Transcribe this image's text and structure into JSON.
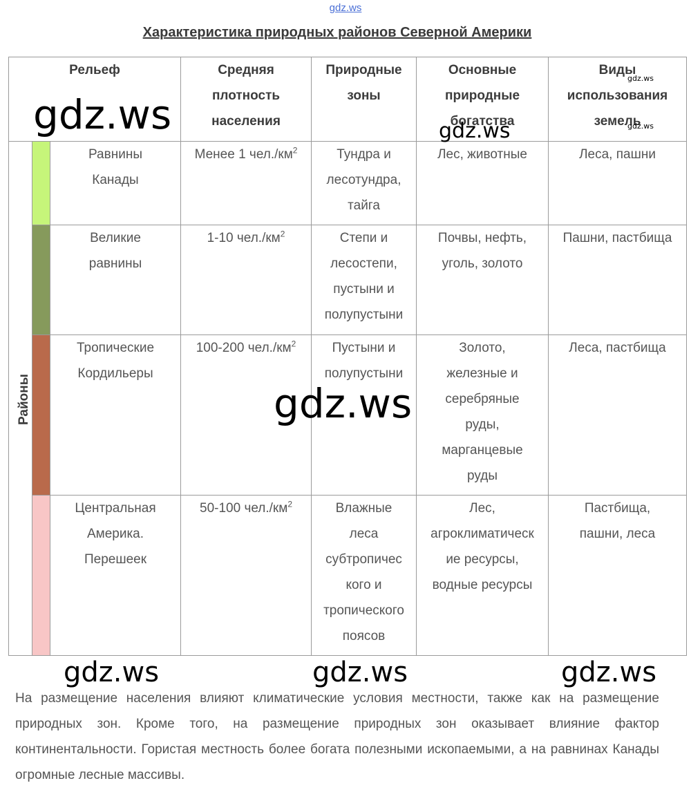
{
  "watermark_top": "gdz.ws",
  "title": "Характеристика природных районов Северной Америки",
  "headers": {
    "relief": "Рельеф",
    "density": [
      "Средняя",
      "плотность",
      "населения"
    ],
    "zones": [
      "Природные",
      "зоны"
    ],
    "resources": [
      "Основные",
      "природные",
      "богатства"
    ],
    "land_use": [
      "Виды",
      "использования",
      "земель"
    ]
  },
  "side_label": "Районы",
  "rows": [
    {
      "stripe_color": "#c6f57a",
      "relief": [
        "Равнины",
        "Канады"
      ],
      "density": "Менее 1 чел./км",
      "density_sup": "2",
      "zones": [
        "Тундра и",
        "лесотундра,",
        "тайга"
      ],
      "resources": [
        "Лес, животные"
      ],
      "land_use": [
        "Леса, пашни"
      ]
    },
    {
      "stripe_color": "#869a5c",
      "relief": [
        "Великие",
        "равнины"
      ],
      "density": "1-10 чел./км",
      "density_sup": "2",
      "zones": [
        "Степи и",
        "лесостепи,",
        "пустыни и",
        "полупустыни"
      ],
      "resources": [
        "Почвы, нефть,",
        "уголь, золото"
      ],
      "land_use": [
        "Пашни, пастбища"
      ]
    },
    {
      "stripe_color": "#b96a4b",
      "relief": [
        "Тропические",
        "Кордильеры"
      ],
      "density": "100-200 чел./км",
      "density_sup": "2",
      "zones": [
        "Пустыни и",
        "полупустыни"
      ],
      "resources": [
        "Золото,",
        "железные и",
        "серебряные",
        "руды,",
        "марганцевые",
        "руды"
      ],
      "land_use": [
        "Леса, пастбища"
      ]
    },
    {
      "stripe_color": "#f8c6c6",
      "relief": [
        "Центральная",
        "Америка.",
        "Перешеек"
      ],
      "density": "50-100 чел./км",
      "density_sup": "2",
      "zones": [
        "Влажные",
        "леса",
        "субтропичес",
        "кого и",
        "тропического",
        "поясов"
      ],
      "resources": [
        "Лес,",
        "агроклиматическ",
        "ие ресурсы,",
        "водные ресурсы"
      ],
      "land_use": [
        "Пастбища,",
        "пашни, леса"
      ]
    }
  ],
  "watermarks": [
    "gdz.ws",
    "gdz.ws",
    "gdz.ws",
    "gdz.ws",
    "gdz.ws",
    "gdz.ws",
    "gdz.ws",
    "gdz.ws",
    "gdz.ws"
  ],
  "paragraph": "На размещение населения влияют климатические условия местности, также как на размещение природных зон. Кроме того, на размещение природных зон оказывает влияние фактор континентальности. Гористая местность более богата полезными ископаемыми, а на равнинах Канады огромные лесные массивы."
}
